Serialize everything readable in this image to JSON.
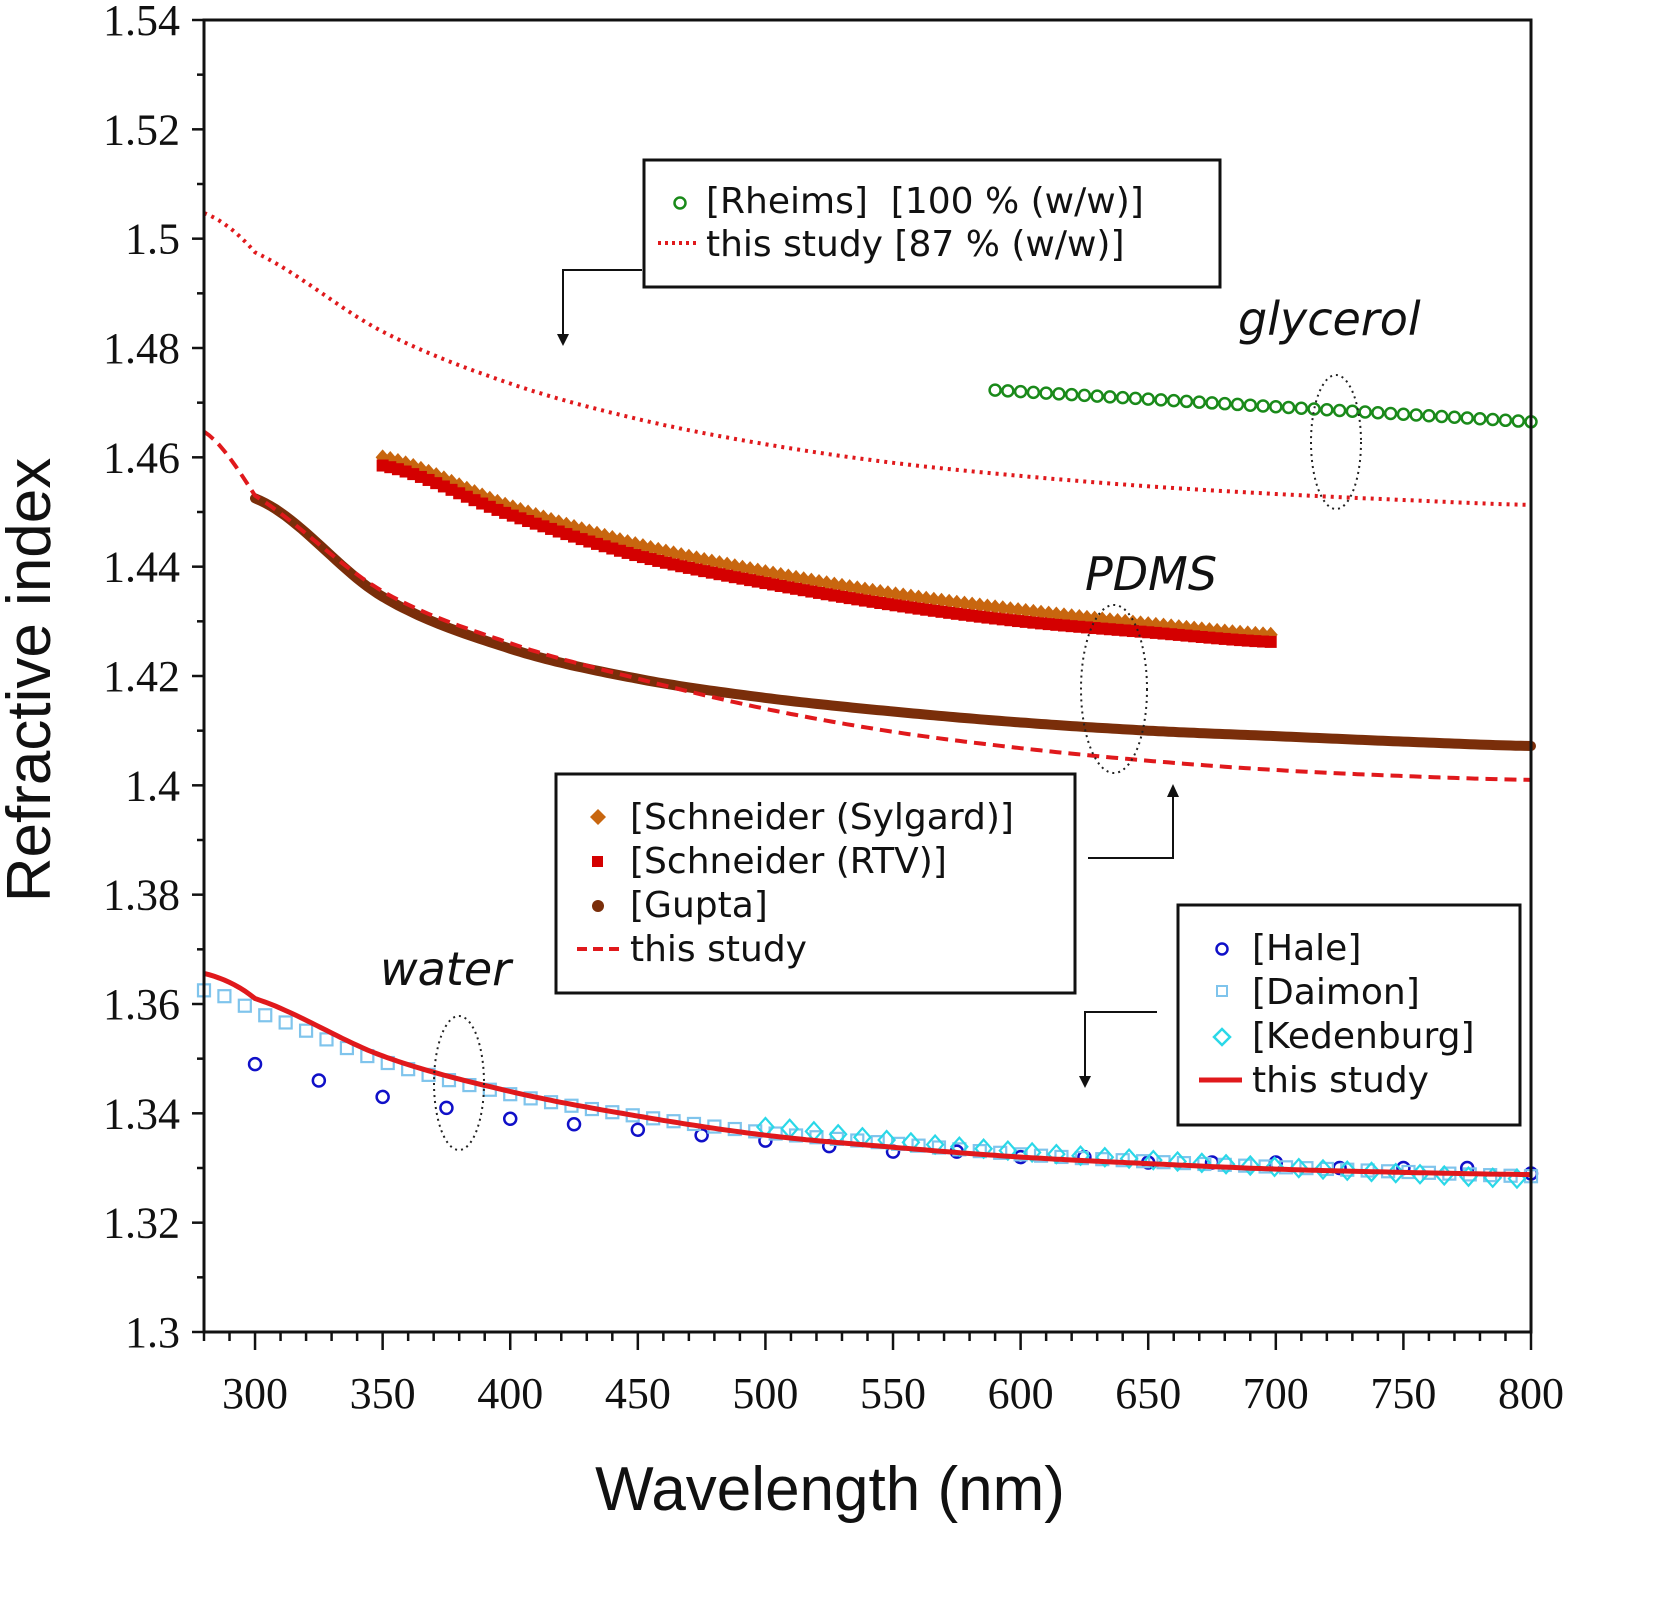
{
  "chart_data": {
    "type": "scatter",
    "title": "",
    "xlabel": "Wavelength (nm)",
    "ylabel": "Refractive index",
    "xlim": [
      280,
      800
    ],
    "ylim": [
      1.3,
      1.54
    ],
    "grid": false,
    "x_ticks": [
      300,
      350,
      400,
      450,
      500,
      550,
      600,
      650,
      700,
      750,
      800
    ],
    "x_tick_labels": [
      "300",
      "350",
      "400",
      "450",
      "500",
      "550",
      "600",
      "650",
      "700",
      "750",
      "800"
    ],
    "y_ticks": [
      1.3,
      1.32,
      1.34,
      1.36,
      1.38,
      1.4,
      1.42,
      1.44,
      1.46,
      1.48,
      1.5,
      1.52,
      1.54
    ],
    "y_tick_labels": [
      "1.3",
      "1.32",
      "1.34",
      "1.36",
      "1.38",
      "1.4",
      "1.42",
      "1.44",
      "1.46",
      "1.48",
      "1.5",
      "1.52",
      "1.54"
    ],
    "annotations": [
      {
        "text": "glycerol",
        "group": "glycerol"
      },
      {
        "text": "PDMS",
        "group": "PDMS"
      },
      {
        "text": "water",
        "group": "water"
      }
    ],
    "legends": [
      {
        "name": "glycerol-legend",
        "entries": [
          {
            "label": "[Rheims]  [100 % (w/w)]",
            "marker": "circle-open",
            "color": "#1a8a1a"
          },
          {
            "label": "this study [87 % (w/w)]",
            "marker": "dotted-line",
            "color": "#e0191c"
          }
        ]
      },
      {
        "name": "pdms-legend",
        "entries": [
          {
            "label": "[Schneider (Sylgard)]",
            "marker": "diamond-filled",
            "color": "#c8660f"
          },
          {
            "label": "[Schneider (RTV)]",
            "marker": "square-filled",
            "color": "#d40000"
          },
          {
            "label": "[Gupta]",
            "marker": "circle-filled",
            "color": "#7a2e0a"
          },
          {
            "label": "this study",
            "marker": "dashed-line",
            "color": "#e0191c"
          }
        ]
      },
      {
        "name": "water-legend",
        "entries": [
          {
            "label": "[Hale]",
            "marker": "circle-open",
            "color": "#1010c8"
          },
          {
            "label": "[Daimon]",
            "marker": "square-open",
            "color": "#7fc4ec"
          },
          {
            "label": "[Kedenburg]",
            "marker": "diamond-open",
            "color": "#2ad8e8"
          },
          {
            "label": "this study",
            "marker": "solid-line",
            "color": "#e0191c"
          }
        ]
      }
    ],
    "series": [
      {
        "name": "Rheims glycerol 100% (w/w)",
        "group": "glycerol",
        "style": "circle-open",
        "color": "#1a8a1a",
        "x": [
          590,
          800
        ],
        "y": [
          1.4723,
          1.4665
        ],
        "sampling_step_nm": 5
      },
      {
        "name": "this study glycerol 87% (w/w)",
        "group": "glycerol",
        "style": "dotted",
        "color": "#e0191c",
        "x": [
          280,
          300,
          350,
          400,
          450,
          500,
          550,
          600,
          650,
          700,
          750,
          800
        ],
        "y": [
          1.5047,
          1.4975,
          1.483,
          1.4735,
          1.467,
          1.4624,
          1.459,
          1.4566,
          1.4547,
          1.4533,
          1.4522,
          1.4513
        ]
      },
      {
        "name": "Schneider (Sylgard)",
        "group": "PDMS",
        "style": "diamond-filled",
        "color": "#c8660f",
        "x": [
          350,
          400,
          450,
          500,
          550,
          600,
          650,
          700
        ],
        "y": [
          1.46,
          1.451,
          1.444,
          1.439,
          1.435,
          1.432,
          1.4295,
          1.4275
        ],
        "sampling_step_nm": 3
      },
      {
        "name": "Schneider (RTV)",
        "group": "PDMS",
        "style": "square-filled",
        "color": "#d40000",
        "x": [
          350,
          400,
          450,
          500,
          550,
          600,
          650,
          700
        ],
        "y": [
          1.4585,
          1.4495,
          1.442,
          1.437,
          1.433,
          1.43,
          1.428,
          1.4262
        ],
        "sampling_step_nm": 3
      },
      {
        "name": "Gupta",
        "group": "PDMS",
        "style": "thick-line",
        "color": "#7a2e0a",
        "x": [
          300,
          350,
          400,
          450,
          500,
          550,
          600,
          650,
          700,
          750,
          800
        ],
        "y": [
          1.4525,
          1.4345,
          1.425,
          1.4195,
          1.416,
          1.4135,
          1.4115,
          1.41,
          1.409,
          1.408,
          1.4072
        ]
      },
      {
        "name": "this study PDMS",
        "group": "PDMS",
        "style": "dashed",
        "color": "#e0191c",
        "x": [
          280,
          300,
          350,
          400,
          450,
          500,
          550,
          600,
          650,
          700,
          750,
          800
        ],
        "y": [
          1.4647,
          1.453,
          1.4355,
          1.426,
          1.4195,
          1.414,
          1.4098,
          1.4068,
          1.4045,
          1.4028,
          1.4017,
          1.401
        ]
      },
      {
        "name": "Hale",
        "group": "water",
        "style": "circle-open",
        "color": "#1010c8",
        "x": [
          300,
          325,
          350,
          375,
          400,
          425,
          450,
          475,
          500,
          525,
          550,
          575,
          600,
          625,
          650,
          675,
          700,
          725,
          750,
          775,
          800
        ],
        "y": [
          1.349,
          1.346,
          1.343,
          1.341,
          1.339,
          1.338,
          1.337,
          1.336,
          1.335,
          1.334,
          1.333,
          1.333,
          1.332,
          1.332,
          1.331,
          1.331,
          1.331,
          1.33,
          1.33,
          1.33,
          1.329
        ]
      },
      {
        "name": "Daimon",
        "group": "water",
        "style": "square-open",
        "color": "#7fc4ec",
        "x": [
          280,
          300,
          350,
          400,
          450,
          500,
          550,
          600,
          650,
          700,
          750,
          800
        ],
        "y": [
          1.3625,
          1.3585,
          1.3495,
          1.3435,
          1.3395,
          1.3365,
          1.3345,
          1.3325,
          1.3312,
          1.3302,
          1.3293,
          1.3285
        ],
        "sampling_step_nm": 8
      },
      {
        "name": "Kedenburg",
        "group": "water",
        "style": "diamond-open",
        "color": "#2ad8e8",
        "x": [
          500,
          550,
          600,
          650,
          700,
          750,
          800
        ],
        "y": [
          1.3375,
          1.335,
          1.333,
          1.3315,
          1.3302,
          1.329,
          1.328
        ],
        "sampling_step_nm": 9.5
      },
      {
        "name": "this study water",
        "group": "water",
        "style": "solid",
        "color": "#e0191c",
        "x": [
          280,
          300,
          350,
          400,
          450,
          500,
          550,
          600,
          650,
          700,
          750,
          800
        ],
        "y": [
          1.3656,
          1.361,
          1.3505,
          1.344,
          1.3395,
          1.336,
          1.3338,
          1.332,
          1.3308,
          1.3298,
          1.3292,
          1.3288
        ]
      }
    ]
  }
}
